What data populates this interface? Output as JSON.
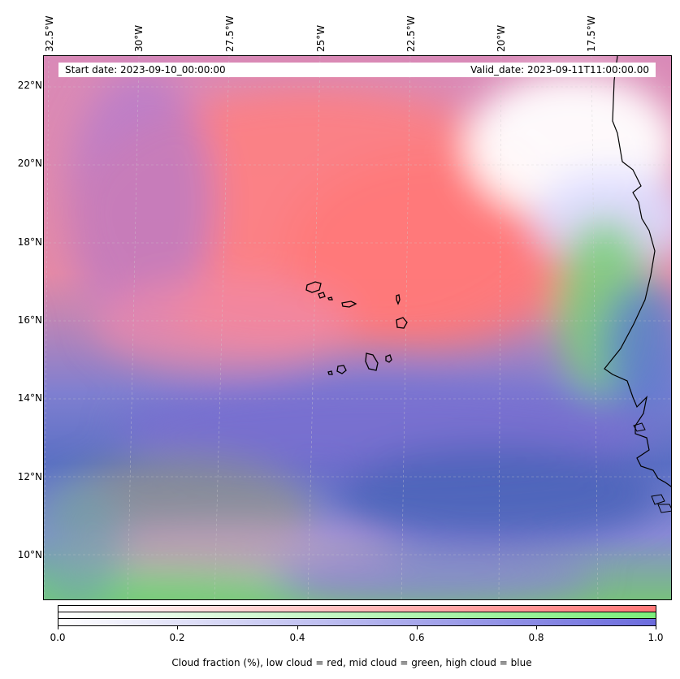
{
  "map": {
    "start_date": "Start date: 2023-09-10_00:00:00",
    "valid_date": "Valid_date: 2023-09-11T11:00:00.00",
    "longitude_labels": [
      "32.5°W",
      "30°W",
      "27.5°W",
      "25°W",
      "22.5°W",
      "20°W",
      "17.5°W"
    ],
    "latitude_labels": [
      "22°N",
      "20°N",
      "18°N",
      "16°N",
      "14°N",
      "12°N",
      "10°N"
    ],
    "extent": {
      "lon_min": -32.7,
      "lon_max": -15.3,
      "lat_min": 8.9,
      "lat_max": 22.8
    },
    "gridlines": true,
    "coastline_color": "#000000",
    "cloud_colors": {
      "low": "#ff7878",
      "mid": "#7bee7b",
      "high": "#6c6cdd"
    }
  },
  "colorbar": {
    "ticks": [
      "0.0",
      "0.2",
      "0.4",
      "0.6",
      "0.8",
      "1.0"
    ],
    "range": [
      0.0,
      1.0
    ],
    "label": "Cloud fraction (%), low cloud = red, mid cloud = green, high cloud = blue"
  }
}
